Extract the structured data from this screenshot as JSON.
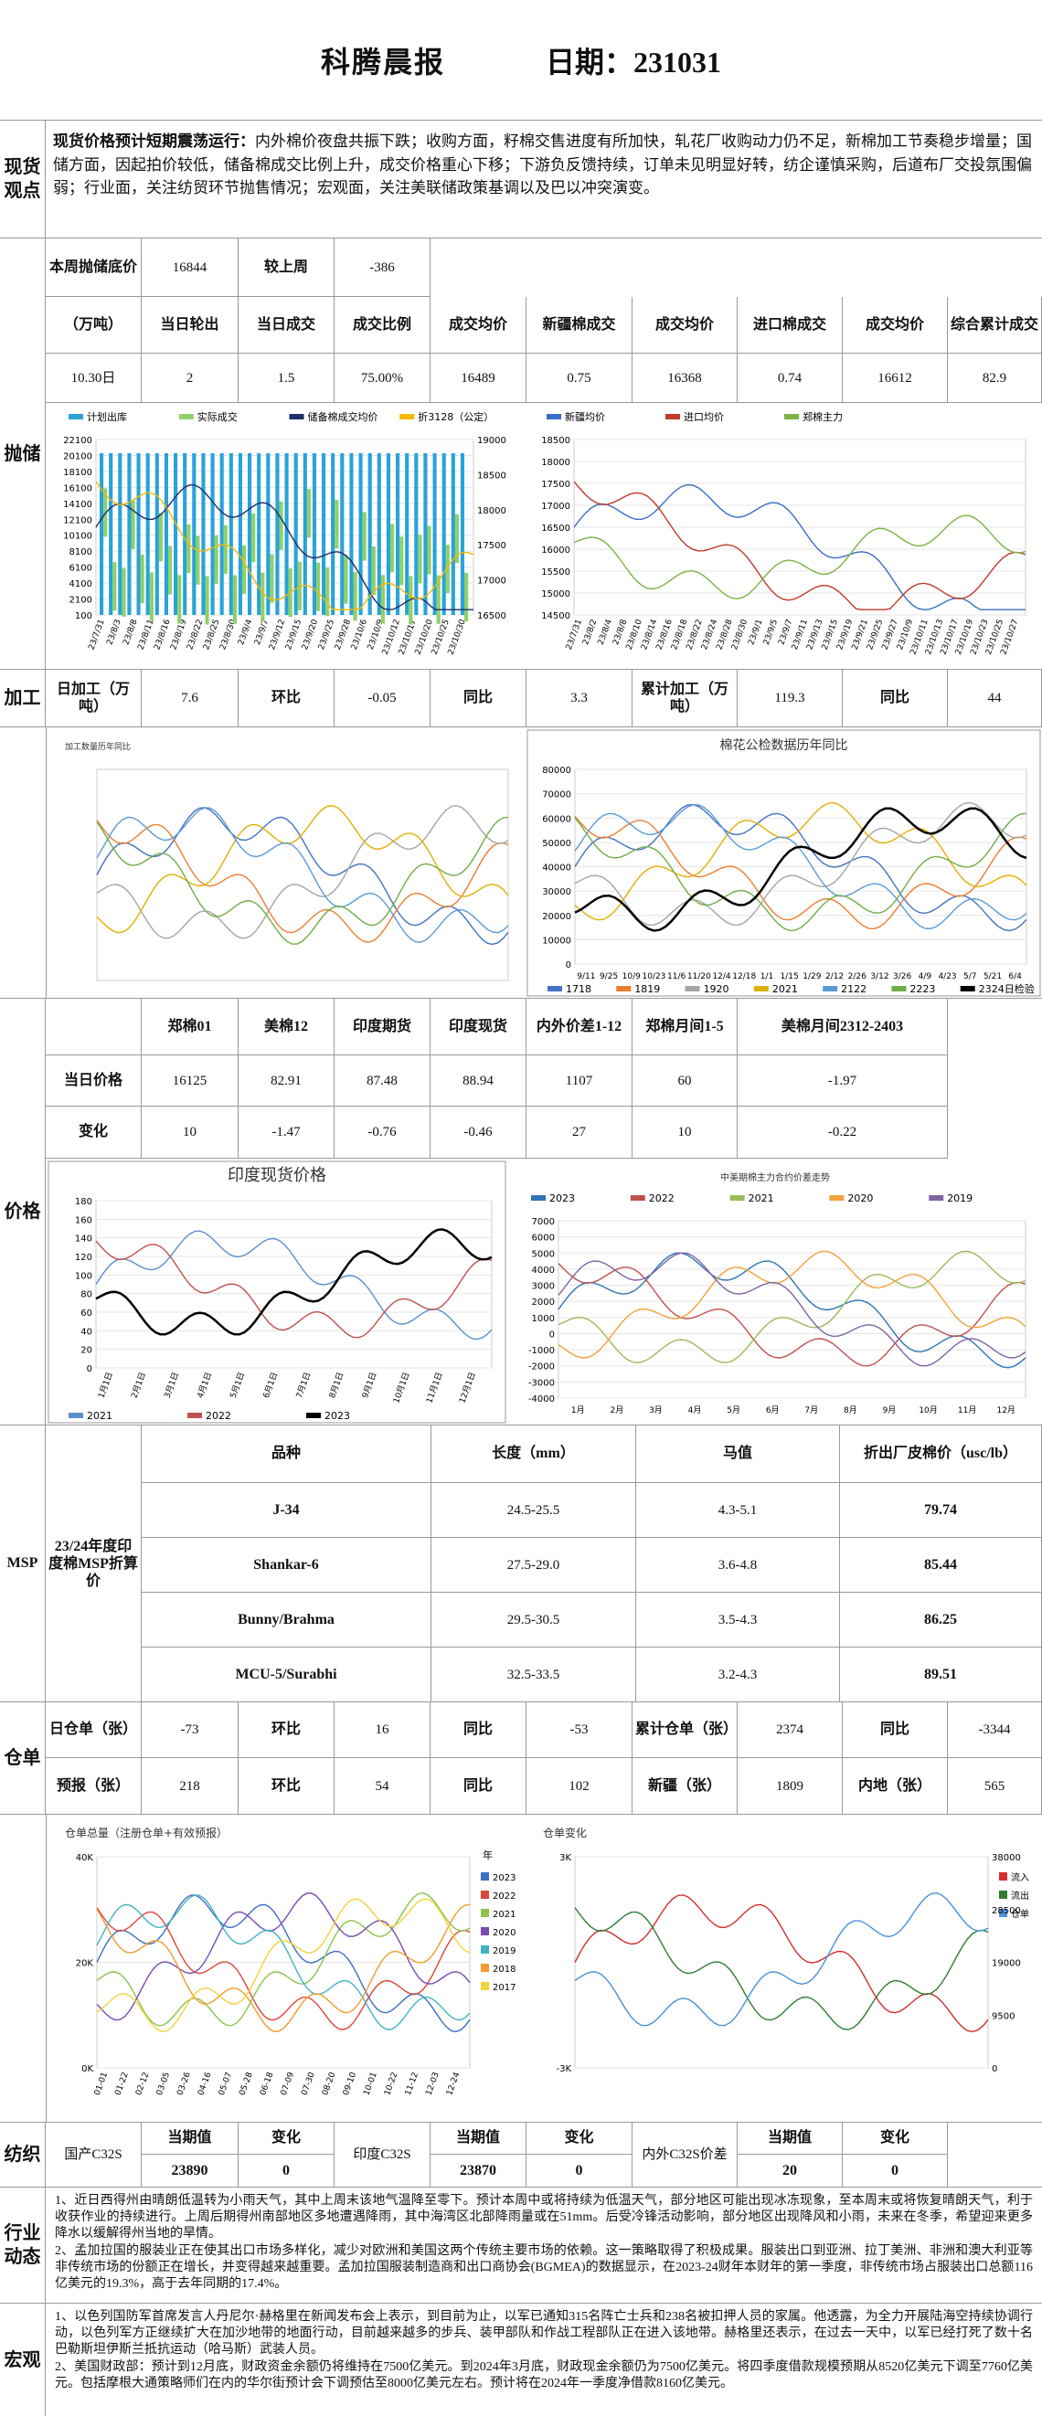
{
  "header": {
    "title": "科腾晨报",
    "date": "日期：231031"
  },
  "spot": {
    "label": "现货观点",
    "lead": "现货价格预计短期震荡运行：",
    "text": "内外棉价夜盘共振下跌；收购方面，籽棉交售进度有所加快，轧花厂收购动力仍不足，新棉加工节奏稳步增量；国储方面，因起拍价较低，储备棉成交比例上升，成交价格重心下移；下游负反馈持续，订单未见明显好转，纺企谨慎采购，后道布厂交投氛围偏弱；行业面，关注纺贸环节抛售情况；宏观面，关注美联储政策基调以及巴以冲突演变。"
  },
  "reserve": {
    "label": "抛储",
    "row1": [
      "本周抛储底价",
      "16844",
      "较上周",
      "-386"
    ],
    "header": [
      "（万吨）",
      "当日轮出",
      "当日成交",
      "成交比例",
      "成交均价",
      "新疆棉成交",
      "成交均价",
      "进口棉成交",
      "成交均价",
      "综合累计成交"
    ],
    "values": [
      "10.30日",
      "2",
      "1.5",
      "75.00%",
      "16489",
      "0.75",
      "16368",
      "0.74",
      "16612",
      "82.9"
    ],
    "charts": [
      {
        "legend": [
          {
            "name": "计划出库",
            "color": "#29a3d8"
          },
          {
            "name": "实际成交",
            "color": "#8fd16a"
          },
          {
            "name": "储备棉成交均价",
            "color": "#1f2d6b"
          },
          {
            "name": "折3128（公定）",
            "color": "#f5b800"
          }
        ],
        "yticks": [
          "22100",
          "20100",
          "18100",
          "16100",
          "14100",
          "12100",
          "10100",
          "8100",
          "6100",
          "4100",
          "2100",
          "100"
        ],
        "y2ticks": [
          "19000",
          "18500",
          "18000",
          "17500",
          "17000",
          "16500"
        ],
        "xticks": [
          "23/7/31",
          "23/8/3",
          "23/8/8",
          "23/8/11",
          "23/8/16",
          "23/8/19",
          "23/8/22",
          "23/8/25",
          "23/8/30",
          "23/9/4",
          "23/9/7",
          "23/9/12",
          "23/9/15",
          "23/9/20",
          "23/9/25",
          "23/9/28",
          "23/10/6",
          "23/10/9",
          "23/10/12",
          "23/10/17",
          "23/10/20",
          "23/10/25",
          "23/10/30"
        ]
      },
      {
        "legend": [
          {
            "name": "新疆均价",
            "color": "#3a6fc4"
          },
          {
            "name": "进口均价",
            "color": "#c0392b"
          },
          {
            "name": "郑棉主力",
            "color": "#7cb342"
          }
        ],
        "yticks": [
          "18500",
          "18000",
          "17500",
          "17000",
          "16500",
          "16000",
          "15500",
          "15000",
          "14500"
        ],
        "xticks": [
          "23/7/31",
          "23/8/2",
          "23/8/4",
          "23/8/8",
          "23/8/10",
          "23/8/14",
          "23/8/16",
          "23/8/18",
          "23/8/22",
          "23/8/24",
          "23/8/28",
          "23/8/30",
          "23/9/1",
          "23/9/5",
          "23/9/7",
          "23/9/11",
          "23/9/13",
          "23/9/15",
          "23/9/19",
          "23/9/21",
          "23/9/25",
          "23/9/27",
          "23/10/9",
          "23/10/11",
          "23/10/13",
          "23/10/17",
          "23/10/19",
          "23/10/23",
          "23/10/25",
          "23/10/27"
        ]
      }
    ]
  },
  "processing": {
    "label": "加工",
    "cells": [
      "日加工（万吨）",
      "7.6",
      "环比",
      "-0.05",
      "同比",
      "3.3",
      "累计加工（万吨）",
      "119.3",
      "同比",
      "44"
    ],
    "charts": [
      {
        "title": "加工数量历年同比"
      },
      {
        "title": "棉花公检数据历年同比",
        "legend": [
          {
            "name": "1718",
            "color": "#4472c4"
          },
          {
            "name": "1819",
            "color": "#ed7d31"
          },
          {
            "name": "1920",
            "color": "#a5a5a5"
          },
          {
            "name": "2021",
            "color": "#e0b000"
          },
          {
            "name": "2122",
            "color": "#5b9bd5"
          },
          {
            "name": "2223",
            "color": "#70ad47"
          },
          {
            "name": "2324日检验",
            "color": "#000000"
          }
        ],
        "yticks": [
          "80000",
          "70000",
          "60000",
          "50000",
          "40000",
          "30000",
          "20000",
          "10000",
          "0"
        ],
        "xticks": [
          "9/11",
          "9/25",
          "10/9",
          "10/23",
          "11/6",
          "11/20",
          "12/4",
          "12/18",
          "1/1",
          "1/15",
          "1/29",
          "2/12",
          "2/26",
          "3/12",
          "3/26",
          "4/9",
          "4/23",
          "5/7",
          "5/21",
          "6/4"
        ]
      }
    ]
  },
  "price": {
    "label": "价格",
    "header": [
      "郑棉01",
      "美棉12",
      "印度期货",
      "印度现货",
      "内外价差1-12",
      "郑棉月间1-5",
      "美棉月间2312-2403"
    ],
    "rows": [
      [
        "当日价格",
        "16125",
        "82.91",
        "87.48",
        "88.94",
        "1107",
        "60",
        "-1.97"
      ],
      [
        "变化",
        "10",
        "-1.47",
        "-0.76",
        "-0.46",
        "27",
        "10",
        "-0.22"
      ]
    ],
    "charts": [
      {
        "title": "印度现货价格",
        "legend": [
          {
            "name": "2021",
            "color": "#5b8fd0"
          },
          {
            "name": "2022",
            "color": "#c0504d"
          },
          {
            "name": "2023",
            "color": "#000000"
          }
        ],
        "yticks": [
          "180",
          "160",
          "140",
          "120",
          "100",
          "80",
          "60",
          "40",
          "20",
          "0"
        ],
        "xticks": [
          "1月1日",
          "2月1日",
          "3月1日",
          "4月1日",
          "5月1日",
          "6月1日",
          "7月1日",
          "8月1日",
          "9月1日",
          "10月1日",
          "11月1日",
          "12月1日"
        ]
      },
      {
        "title": "中美期棉主力合约价差走势",
        "legend": [
          {
            "name": "2023",
            "color": "#2e75b6"
          },
          {
            "name": "2022",
            "color": "#c0504d"
          },
          {
            "name": "2021",
            "color": "#9bbb59"
          },
          {
            "name": "2020",
            "color": "#f3a13a"
          },
          {
            "name": "2019",
            "color": "#8064a2"
          }
        ],
        "yticks": [
          "7000",
          "6000",
          "5000",
          "4000",
          "3000",
          "2000",
          "1000",
          "0",
          "-1000",
          "-2000",
          "-3000",
          "-4000"
        ],
        "xticks": [
          "1月",
          "2月",
          "3月",
          "4月",
          "5月",
          "6月",
          "7月",
          "8月",
          "9月",
          "10月",
          "11月",
          "12月"
        ]
      }
    ]
  },
  "msp": {
    "label": "MSP",
    "sublabel": "23/24年度印度棉MSP折算价",
    "header": [
      "品种",
      "长度（mm）",
      "马值",
      "折出厂皮棉价（usc/lb）"
    ],
    "rows": [
      [
        "J-34",
        "24.5-25.5",
        "4.3-5.1",
        "79.74"
      ],
      [
        "Shankar-6",
        "27.5-29.0",
        "3.6-4.8",
        "85.44"
      ],
      [
        "Bunny/Brahma",
        "29.5-30.5",
        "3.5-4.3",
        "86.25"
      ],
      [
        "MCU-5/Surabhi",
        "32.5-33.5",
        "3.2-4.3",
        "89.51"
      ]
    ]
  },
  "warehouse": {
    "label": "仓单",
    "rows": [
      [
        "日仓单（张）",
        "-73",
        "环比",
        "16",
        "同比",
        "-53",
        "累计仓单（张）",
        "2374",
        "同比",
        "-3344"
      ],
      [
        "预报（张）",
        "218",
        "环比",
        "54",
        "同比",
        "102",
        "新疆（张）",
        "1809",
        "内地（张）",
        "565"
      ]
    ],
    "charts": [
      {
        "title": "仓单总量（注册仓单+有效预报）",
        "legend_title": "年",
        "legend": [
          {
            "name": "2023",
            "color": "#3d6fc4"
          },
          {
            "name": "2022",
            "color": "#e0453a"
          },
          {
            "name": "2021",
            "color": "#8bc34a"
          },
          {
            "name": "2020",
            "color": "#7b4bb5"
          },
          {
            "name": "2019",
            "color": "#3fb3c4"
          },
          {
            "name": "2018",
            "color": "#f29b30"
          },
          {
            "name": "2017",
            "color": "#f3d23a"
          }
        ],
        "yticks": [
          "40K",
          "20K",
          "0K"
        ],
        "xticks": [
          "01-01",
          "01-22",
          "02-12",
          "03-05",
          "03-26",
          "04-16",
          "05-07",
          "05-28",
          "06-18",
          "07-09",
          "07-30",
          "08-20",
          "09-10",
          "10-01",
          "10-22",
          "11-12",
          "12-03",
          "12-24"
        ]
      },
      {
        "title": "仓单变化",
        "legend": [
          {
            "name": "流入",
            "color": "#d32f2f"
          },
          {
            "name": "流出",
            "color": "#2e7d32"
          },
          {
            "name": "仓单",
            "color": "#4a90d9"
          }
        ],
        "yticks": [
          "3K",
          "-3K"
        ],
        "y2ticks": [
          "38000",
          "28500",
          "19000",
          "9500",
          "0"
        ]
      }
    ]
  },
  "textile": {
    "label": "纺织",
    "groups": [
      {
        "name": "国产C32S",
        "labels": [
          "当期值",
          "变化"
        ],
        "values": [
          "23890",
          "0"
        ]
      },
      {
        "name": "印度C32S",
        "labels": [
          "当期值",
          "变化"
        ],
        "values": [
          "23870",
          "0"
        ]
      },
      {
        "name": "内外C32S价差",
        "labels": [
          "当期值",
          "变化"
        ],
        "values": [
          "20",
          "0"
        ]
      }
    ]
  },
  "industry": {
    "label": "行业动态",
    "paragraphs": [
      "1、近日西得州由晴朗低温转为小雨天气，其中上周末该地气温降至零下。预计本周中或将持续为低温天气，部分地区可能出现冰冻现象，至本周末或将恢复晴朗天气，利于收获作业的持续进行。上周后期得州南部地区多地遭遇降雨，其中海湾区北部降雨量或在51mm。后受冷锋活动影响，部分地区出现降风和小雨，未来在冬季，希望迎来更多降水以缓解得州当地的旱情。",
      "2、孟加拉国的服装业正在使其出口市场多样化，减少对欧洲和美国这两个传统主要市场的依赖。这一策略取得了积极成果。服装出口到亚洲、拉丁美洲、非洲和澳大利亚等非传统市场的份额正在增长，并变得越来越重要。孟加拉国服装制造商和出口商协会(BGMEA)的数据显示，在2023-24财年本财年的第一季度，非传统市场占服装出口总额116亿美元的19.3%，高于去年同期的17.4%。"
    ]
  },
  "macro": {
    "label": "宏观",
    "paragraphs": [
      "1、以色列国防军首席发言人丹尼尔·赫格里在新闻发布会上表示，到目前为止，以军已通知315名阵亡士兵和238名被扣押人员的家属。他透露，为全力开展陆海空持续协调行动，以色列军方正继续扩大在加沙地带的地面行动，目前越来越多的步兵、装甲部队和作战工程部队正在进入该地带。赫格里还表示，在过去一天中，以军已经打死了数十名巴勒斯坦伊斯兰抵抗运动（哈马斯）武装人员。",
      "2、美国财政部：预计到12月底，财政资金余额仍将维持在7500亿美元。到2024年3月底，财政现金余额仍为7500亿美元。将四季度借款规模预期从8520亿美元下调至7760亿美元。包括摩根大通策略师们在内的华尔街预计会下调预估至8000亿美元左右。预计将在2024年一季度净借款8160亿美元。"
    ]
  }
}
